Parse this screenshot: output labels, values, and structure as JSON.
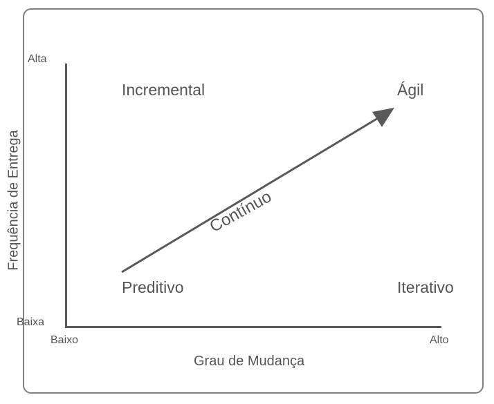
{
  "diagram": {
    "x_axis": {
      "title": "Grau de Mudança",
      "low_label": "Baixo",
      "high_label": "Alto"
    },
    "y_axis": {
      "title": "Frequência de Entrega",
      "low_label": "Baixa",
      "high_label": "Alta"
    },
    "quadrants": {
      "top_left": "Incremental",
      "top_right": "Ágil",
      "bottom_left": "Preditivo",
      "bottom_right": "Iterativo"
    },
    "arrow": {
      "label": "Contínuo",
      "from": "Preditivo",
      "to": "Ágil",
      "color": "#595959"
    },
    "colors": {
      "text": "#555555",
      "axis": "#595959",
      "frame": "#7f7f7f"
    }
  }
}
